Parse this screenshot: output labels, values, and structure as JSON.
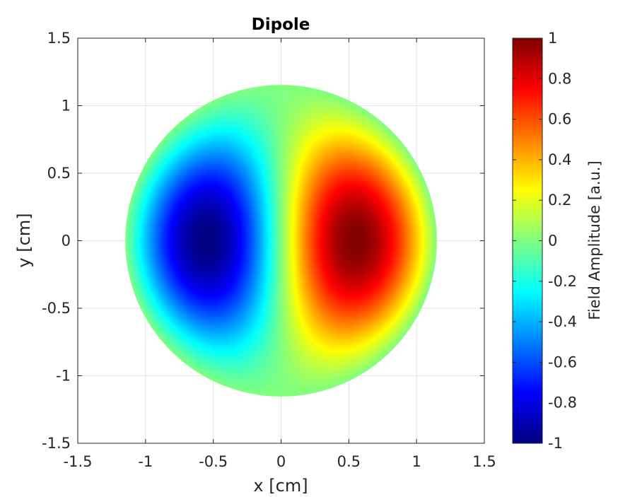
{
  "chart_data": {
    "type": "heatmap",
    "title": "Dipole",
    "xlabel": "x [cm]",
    "ylabel": "y [cm]",
    "xlim": [
      -1.5,
      1.5
    ],
    "ylim": [
      -1.5,
      1.5
    ],
    "xticks": [
      "-1.5",
      "-1",
      "-0.5",
      "0",
      "0.5",
      "1",
      "1.5"
    ],
    "yticks": [
      "-1.5",
      "-1",
      "-0.5",
      "0",
      "0.5",
      "1",
      "1.5"
    ],
    "grid": true,
    "colormap": "jet",
    "field": {
      "shape": "disk",
      "radius": 1.15,
      "positive_lobe_center": [
        0.55,
        0
      ],
      "negative_lobe_center": [
        -0.55,
        0
      ],
      "peak_value": 1,
      "min_value": -1
    },
    "colorbar": {
      "label": "Field Amplitude [a.u.]",
      "range": [
        -1,
        1
      ],
      "ticks": [
        "-1",
        "-0.8",
        "-0.6",
        "-0.4",
        "-0.2",
        "0",
        "0.2",
        "0.4",
        "0.6",
        "0.8",
        "1"
      ]
    }
  }
}
